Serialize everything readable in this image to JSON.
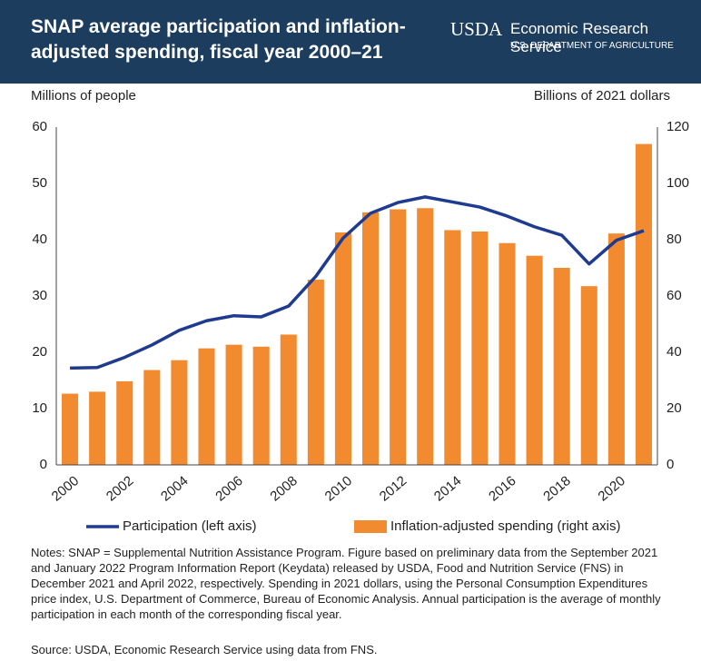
{
  "header": {
    "title_lines": [
      "SNAP average participation and inflation-",
      "adjusted spending, fiscal year 2000–21"
    ],
    "logo": "USDA",
    "agency": "Economic Research Service",
    "department": "U.S. DEPARTMENT OF AGRICULTURE"
  },
  "chart_data": {
    "type": "bar_line",
    "y_label": "Millions of people",
    "y2_label": "Billions of 2021 dollars",
    "categories": [
      "2000",
      null,
      "2002",
      null,
      "2004",
      null,
      "2006",
      null,
      "2008",
      null,
      "2010",
      null,
      "2012",
      null,
      "2014",
      null,
      "2016",
      null,
      "2018",
      null,
      "2020",
      null
    ],
    "ylim": [
      0,
      60
    ],
    "yticks": [
      0,
      10,
      20,
      30,
      40,
      50,
      60
    ],
    "y2lim": [
      0,
      120
    ],
    "y2ticks": [
      0,
      20,
      40,
      60,
      80,
      100,
      120
    ],
    "series": [
      {
        "name": "Participation (left axis)",
        "type": "line",
        "color": "#1f3b8f",
        "values": [
          17.2,
          17.3,
          19.1,
          21.3,
          23.9,
          25.6,
          26.5,
          26.3,
          28.2,
          33.5,
          40.3,
          44.7,
          46.6,
          47.6,
          46.7,
          45.8,
          44.2,
          42.3,
          40.8,
          35.7,
          39.9,
          41.6
        ]
      },
      {
        "name": "Inflation-adjusted spending (right axis)",
        "type": "bar",
        "axis": "y2",
        "color": "#f28a30",
        "values": [
          25.3,
          26,
          29.7,
          33.7,
          37.2,
          41.4,
          42.7,
          42,
          46.3,
          65.8,
          82.6,
          89.7,
          90.8,
          91.2,
          83.4,
          82.9,
          78.8,
          74.3,
          70,
          63.5,
          82.2,
          114
        ]
      }
    ]
  },
  "notes": "Notes: SNAP = Supplemental Nutrition Assistance Program. Figure based on preliminary data from the September 2021 and January 2022 Program Information Report (Keydata) released by USDA, Food and Nutrition Service (FNS) in December 2021 and April 2022, respectively. Spending in 2021 dollars, using the Personal Consumption Expenditures price index, U.S. Department of Commerce, Bureau of Economic Analysis. Annual participation is the average of monthly participation in each month of the corresponding fiscal year.",
  "source": "Source: USDA, Economic Research Service using data from FNS."
}
